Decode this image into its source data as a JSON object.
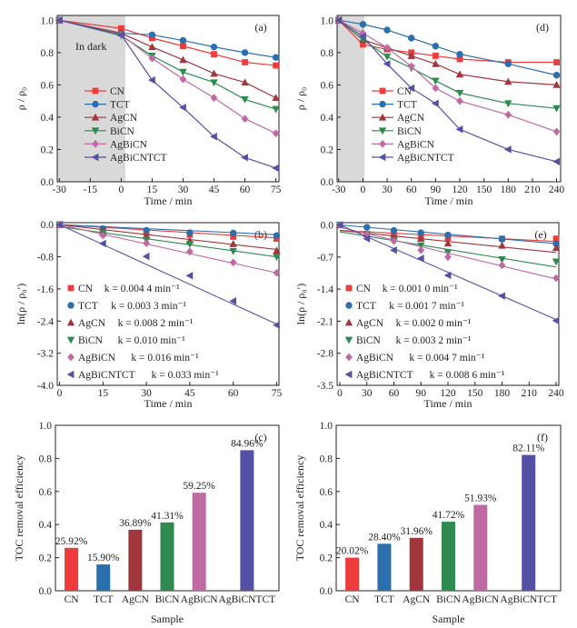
{
  "chart_data": [
    {
      "panel": "(a)",
      "type": "line",
      "x": [
        -30,
        0,
        15,
        30,
        45,
        60,
        75
      ],
      "xticks": [
        "-30",
        "-15",
        "0",
        "15",
        "30",
        "45",
        "60",
        "75"
      ],
      "xtick_values": [
        -30,
        -15,
        0,
        15,
        30,
        45,
        60,
        75
      ],
      "yticks": [
        "0.0",
        "0.2",
        "0.4",
        "0.6",
        "0.8",
        "1.0"
      ],
      "ytick_values": [
        0,
        0.2,
        0.4,
        0.6,
        0.8,
        1.0
      ],
      "xlabel": "Time / min",
      "ylabel": "ρ / ρ₀",
      "xlim": [
        -30,
        75
      ],
      "ylim": [
        0,
        1.0
      ],
      "shaded_region": {
        "x": [
          -30,
          2
        ],
        "label": "In dark"
      },
      "legend": "left",
      "series": [
        {
          "name": "CN",
          "values": [
            1.0,
            0.95,
            0.89,
            0.84,
            0.79,
            0.74,
            0.72
          ]
        },
        {
          "name": "TCT",
          "values": [
            1.0,
            0.92,
            0.91,
            0.875,
            0.835,
            0.8,
            0.77
          ]
        },
        {
          "name": "AgCN",
          "values": [
            1.0,
            0.92,
            0.835,
            0.755,
            0.67,
            0.615,
            0.52
          ]
        },
        {
          "name": "BiCN",
          "values": [
            1.0,
            0.905,
            0.78,
            0.68,
            0.615,
            0.51,
            0.45
          ]
        },
        {
          "name": "AgBiCN",
          "values": [
            1.0,
            0.91,
            0.765,
            0.635,
            0.52,
            0.39,
            0.3
          ]
        },
        {
          "name": "AgBiCNTCT",
          "values": [
            1.0,
            0.91,
            0.63,
            0.46,
            0.28,
            0.15,
            0.085
          ]
        }
      ]
    },
    {
      "panel": "(d)",
      "type": "line",
      "x": [
        -30,
        0,
        30,
        60,
        90,
        120,
        180,
        240
      ],
      "xticks": [
        "-30",
        "0",
        "30",
        "60",
        "90",
        "120",
        "150",
        "180",
        "210",
        "240"
      ],
      "xtick_values": [
        -30,
        0,
        30,
        60,
        90,
        120,
        150,
        180,
        210,
        240
      ],
      "yticks": [
        "0.0",
        "0.2",
        "0.4",
        "0.6",
        "0.8",
        "1.0"
      ],
      "ytick_values": [
        0,
        0.2,
        0.4,
        0.6,
        0.8,
        1.0
      ],
      "xlabel": "Time / min",
      "ylabel": "ρ / ρ₀",
      "xlim": [
        -30,
        240
      ],
      "ylim": [
        0,
        1.0
      ],
      "shaded_region": {
        "x": [
          -30,
          2
        ]
      },
      "legend": "bottom-left",
      "series": [
        {
          "name": "CN",
          "values": [
            1.0,
            0.85,
            0.82,
            0.8,
            0.78,
            0.76,
            0.74,
            0.74
          ]
        },
        {
          "name": "TCT",
          "values": [
            1.0,
            0.975,
            0.94,
            0.89,
            0.84,
            0.79,
            0.73,
            0.66
          ]
        },
        {
          "name": "AgCN",
          "values": [
            1.0,
            0.88,
            0.83,
            0.78,
            0.73,
            0.665,
            0.62,
            0.6
          ]
        },
        {
          "name": "BiCN",
          "values": [
            1.0,
            0.88,
            0.775,
            0.705,
            0.625,
            0.55,
            0.485,
            0.455
          ]
        },
        {
          "name": "AgBiCN",
          "values": [
            1.0,
            0.92,
            0.83,
            0.715,
            0.58,
            0.5,
            0.415,
            0.31
          ]
        },
        {
          "name": "AgBiCNTCT",
          "values": [
            1.0,
            0.9,
            0.73,
            0.58,
            0.485,
            0.325,
            0.2,
            0.125
          ]
        }
      ]
    },
    {
      "panel": "(b)",
      "type": "scatter",
      "x": [
        0,
        15,
        30,
        45,
        60,
        75
      ],
      "xticks": [
        "0",
        "15",
        "30",
        "45",
        "60",
        "75"
      ],
      "xtick_values": [
        0,
        15,
        30,
        45,
        60,
        75
      ],
      "yticks": [
        "-4.0",
        "-3.2",
        "-2.4",
        "-1.6",
        "-0.8",
        "0.0"
      ],
      "ytick_values": [
        -4.0,
        -3.2,
        -2.4,
        -1.6,
        -0.8,
        0.0
      ],
      "xlabel": "Time / min",
      "ylabel": "ln(ρ / ρ₀′)",
      "xlim": [
        0,
        75
      ],
      "ylim": [
        -4.0,
        0.0
      ],
      "legend": "bottom-left",
      "series": [
        {
          "name": "CN",
          "k_label": "k = 0.004 4 min⁻¹",
          "k": 0.0044,
          "fit_intercept": 0,
          "values": [
            0,
            -0.15,
            -0.2,
            -0.25,
            -0.3,
            -0.35
          ]
        },
        {
          "name": "TCT",
          "k_label": "k = 0.003 3 min⁻¹",
          "k": 0.0033,
          "fit_intercept": 0,
          "values": [
            0,
            -0.1,
            -0.14,
            -0.2,
            -0.21,
            -0.27
          ]
        },
        {
          "name": "AgCN",
          "k_label": "k = 0.008 2 min⁻¹",
          "k": 0.0082,
          "fit_intercept": 0,
          "values": [
            0,
            -0.18,
            -0.28,
            -0.4,
            -0.48,
            -0.65
          ]
        },
        {
          "name": "BiCN",
          "k_label": "k = 0.010 min⁻¹",
          "k": 0.01,
          "fit_intercept": -0.05,
          "values": [
            0,
            -0.2,
            -0.38,
            -0.48,
            -0.66,
            -0.8
          ]
        },
        {
          "name": "AgBiCN",
          "k_label": "k = 0.016 min⁻¹",
          "k": 0.016,
          "fit_intercept": 0,
          "values": [
            0,
            -0.27,
            -0.46,
            -0.67,
            -0.94,
            -1.2
          ]
        },
        {
          "name": "AgBiCNTCT",
          "k_label": "k = 0.033 min⁻¹",
          "k": 0.033,
          "fit_intercept": 0,
          "values": [
            0,
            -0.47,
            -0.79,
            -1.27,
            -1.9,
            -2.5
          ]
        }
      ]
    },
    {
      "panel": "(e)",
      "type": "scatter",
      "x": [
        0,
        30,
        60,
        90,
        120,
        180,
        240
      ],
      "xticks": [
        "0",
        "30",
        "60",
        "90",
        "120",
        "150",
        "180",
        "210",
        "240"
      ],
      "xtick_values": [
        0,
        30,
        60,
        90,
        120,
        150,
        180,
        210,
        240
      ],
      "yticks": [
        "-3.5",
        "-2.8",
        "-2.1",
        "-1.4",
        "-0.7",
        "0.0"
      ],
      "ytick_values": [
        -3.5,
        -2.8,
        -2.1,
        -1.4,
        -0.7,
        0.0
      ],
      "xlabel": "Time / min",
      "ylabel": "ln(ρ / ρ₀′)",
      "xlim": [
        0,
        240
      ],
      "ylim": [
        -3.5,
        0.0
      ],
      "legend": "bottom-left",
      "series": [
        {
          "name": "CN",
          "k_label": "k = 0.001 0 min⁻¹",
          "k": 0.001,
          "fit_intercept": -0.12,
          "values": [
            0,
            -0.2,
            -0.22,
            -0.25,
            -0.28,
            -0.3,
            -0.3
          ]
        },
        {
          "name": "TCT",
          "k_label": "k = 0.001 7 min⁻¹",
          "k": 0.0017,
          "fit_intercept": 0,
          "values": [
            0,
            -0.05,
            -0.12,
            -0.17,
            -0.22,
            -0.31,
            -0.41
          ]
        },
        {
          "name": "AgCN",
          "k_label": "k = 0.002 0 min⁻¹",
          "k": 0.002,
          "fit_intercept": -0.12,
          "values": [
            0,
            -0.2,
            -0.25,
            -0.3,
            -0.4,
            -0.45,
            -0.5
          ]
        },
        {
          "name": "BiCN",
          "k_label": "k = 0.003 2 min⁻¹",
          "k": 0.0032,
          "fit_intercept": -0.15,
          "values": [
            0,
            -0.2,
            -0.33,
            -0.45,
            -0.6,
            -0.75,
            -0.8
          ]
        },
        {
          "name": "AgBiCN",
          "k_label": "k = 0.004 7 min⁻¹",
          "k": 0.0047,
          "fit_intercept": -0.05,
          "values": [
            0,
            -0.2,
            -0.35,
            -0.55,
            -0.7,
            -0.88,
            -1.16
          ]
        },
        {
          "name": "AgBiCNTCT",
          "k_label": "k = 0.008 6 min⁻¹",
          "k": 0.0086,
          "fit_intercept": 0,
          "values": [
            0,
            -0.3,
            -0.55,
            -0.73,
            -1.1,
            -1.55,
            -2.09
          ]
        }
      ]
    },
    {
      "panel": "(c)",
      "type": "bar",
      "categories": [
        "CN",
        "TCT",
        "AgCN",
        "BiCN",
        "AgBiCN",
        "AgBiCNTCT"
      ],
      "values": [
        0.2592,
        0.159,
        0.3689,
        0.4131,
        0.5925,
        0.8496
      ],
      "data_labels": [
        "25.92%",
        "15.90%",
        "36.89%",
        "41.31%",
        "59.25%",
        "84.96%"
      ],
      "yticks": [
        "0.0",
        "0.2",
        "0.4",
        "0.6",
        "0.8",
        "1.0"
      ],
      "ytick_values": [
        0,
        0.2,
        0.4,
        0.6,
        0.8,
        1.0
      ],
      "xlabel": "Sample",
      "ylabel": "TOC removal efficiency",
      "ylim": [
        0,
        1.0
      ]
    },
    {
      "panel": "(f)",
      "type": "bar",
      "categories": [
        "CN",
        "TCT",
        "AgCN",
        "BiCN",
        "AgBiCN",
        "AgBiCNTCT"
      ],
      "values": [
        0.2002,
        0.284,
        0.3196,
        0.4172,
        0.5193,
        0.8211
      ],
      "data_labels": [
        "20.02%",
        "28.40%",
        "31.96%",
        "41.72%",
        "51.93%",
        "82.11%"
      ],
      "yticks": [
        "0.0",
        "0.2",
        "0.4",
        "0.6",
        "0.8",
        "1.0"
      ],
      "ytick_values": [
        0,
        0.2,
        0.4,
        0.6,
        0.8,
        1.0
      ],
      "xlabel": "Sample",
      "ylabel": "TOC removal efficiency",
      "ylim": [
        0,
        1.0
      ]
    }
  ],
  "colors": {
    "CN": "#ee3b3b",
    "TCT": "#2b6fad",
    "AgCN": "#a1363c",
    "BiCN": "#2e8a4f",
    "AgBiCN": "#bf6aa3",
    "AgBiCNTCT": "#5451a4",
    "shade": "#d9d9d9"
  },
  "markers": {
    "CN": "square",
    "TCT": "circle",
    "AgCN": "triangle-up",
    "BiCN": "triangle-down",
    "AgBiCN": "diamond",
    "AgBiCNTCT": "triangle-left"
  }
}
